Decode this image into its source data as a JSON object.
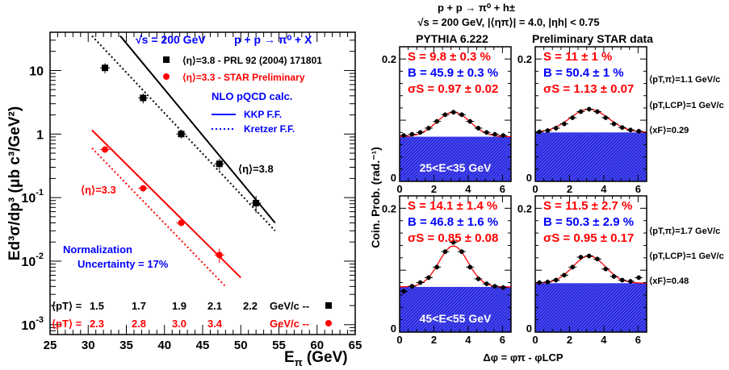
{
  "chart_data": [
    {
      "type": "scatter",
      "title": "",
      "xlabel": "E",
      "xlabel_sub": "π",
      "xlabel_unit": "(GeV)",
      "ylabel": "Ed³σ/dp³ (μb c³/GeV²)",
      "xlim": [
        25,
        65
      ],
      "ylim": [
        0.0007,
        40
      ],
      "yscale": "log",
      "x_ticks": [
        25,
        30,
        35,
        40,
        45,
        50,
        55,
        60,
        65
      ],
      "y_tick_labels": [
        {
          "base": "10",
          "exp": "",
          "y": 10
        },
        {
          "base": "1",
          "exp": "",
          "y": 1
        },
        {
          "base": "10",
          "exp": "-1",
          "y": 0.1
        },
        {
          "base": "10",
          "exp": "-2",
          "y": 0.01
        },
        {
          "base": "10",
          "exp": "-3",
          "y": 0.001
        }
      ],
      "annotations": {
        "sqrt_s": "√s = 200 GeV",
        "process": "p + p → π⁰ + X",
        "legend_black": "⟨η⟩=3.8 - PRL 92 (2004) 171801",
        "legend_red": "⟨η⟩=3.3 - STAR Preliminary",
        "nlo": "NLO pQCD calc.",
        "kkp": "KKP F.F.",
        "kretzer": "Kretzer F.F.",
        "eta38": "⟨η⟩=3.8",
        "eta33": "⟨η⟩=3.3",
        "norm1": "Normalization",
        "norm2": "Uncertainty = 17%"
      },
      "pt_rows": [
        {
          "label": "⟨pT⟩ =",
          "values": [
            "1.5",
            "1.7",
            "1.9",
            "2.1",
            "2.2"
          ],
          "unit": "GeV/c  --",
          "color": "#000000"
        },
        {
          "label": "⟨pT⟩ =",
          "values": [
            "2.3",
            "2.8",
            "3.0",
            "3.4"
          ],
          "unit": "GeV/c  --",
          "color": "#ff0000"
        }
      ],
      "series": [
        {
          "name": "⟨η⟩=3.8 - PRL 92 (2004) 171801",
          "color": "#000000",
          "marker": "square",
          "x": [
            32.2,
            37.2,
            42.2,
            47.2,
            52.0
          ],
          "y": [
            11,
            3.7,
            1.0,
            0.34,
            0.082
          ],
          "yerr_rel": [
            0.18,
            0.18,
            0.15,
            0.2,
            0.3
          ]
        },
        {
          "name": "⟨η⟩=3.3 - STAR Preliminary",
          "color": "#ff0000",
          "marker": "circle",
          "x": [
            32.2,
            37.2,
            42.2,
            47.2
          ],
          "y": [
            0.57,
            0.14,
            0.04,
            0.0125
          ],
          "yerr_rel": [
            0.08,
            0.08,
            0.1,
            0.25
          ]
        }
      ],
      "curves": [
        {
          "name": "KKP F.F.",
          "color": "#000000",
          "style": "solid",
          "x": [
            34.2,
            54.5
          ],
          "y": [
            35,
            0.04
          ]
        },
        {
          "name": "Kretzer F.F.",
          "color": "#000000",
          "style": "dotted",
          "x": [
            30.5,
            54.5
          ],
          "y": [
            35,
            0.03
          ]
        },
        {
          "name": "",
          "color": "#ff0000",
          "style": "solid",
          "x": [
            30.5,
            50.0
          ],
          "y": [
            1.15,
            0.0055
          ]
        },
        {
          "name": "",
          "color": "#ff0000",
          "style": "dotted",
          "x": [
            30.5,
            48.0
          ],
          "y": [
            0.6,
            0.004
          ]
        }
      ]
    },
    {
      "type": "scatter",
      "title_line1": "p + p → π⁰ + h±",
      "title_line2": "√s = 200 GeV, |⟨ηπ⟩| = 4.0, |ηh| < 0.75",
      "col_titles": [
        "PYTHIA 6.222",
        "Preliminary STAR data"
      ],
      "ylabel": "Coin. Prob. (rad.⁻¹)",
      "xlabel": "Δφ = φπ - φLCP",
      "xlim": [
        0,
        6.5
      ],
      "ylim": [
        0,
        0.22
      ],
      "x_ticks": [
        0,
        2,
        4,
        6
      ],
      "y_ticks": [
        0,
        0.2
      ],
      "y_tick_labels": [
        "0",
        "0.2"
      ],
      "side_labels": {
        "top": [
          "⟨pT,π⟩=1.1 GeV/c",
          "⟨pT,LCP⟩=1 GeV/c",
          "⟨xF⟩=0.29"
        ],
        "bottom": [
          "⟨pT,π⟩=1.7 GeV/c",
          "⟨pT,LCP⟩=1 GeV/c",
          "⟨xF⟩=0.48"
        ]
      },
      "panels": [
        {
          "S": "S = 9.8 ± 0.3 %",
          "B": "B = 45.9 ± 0.3 %",
          "sigma": "σS = 0.97 ± 0.02",
          "energy": "25<E<35 GeV",
          "baseline": 0.073,
          "amp": 0.04,
          "width": 0.97,
          "points": [
            0.075,
            0.077,
            0.08,
            0.087,
            0.098,
            0.109,
            0.113,
            0.109,
            0.098,
            0.087,
            0.08,
            0.077,
            0.075
          ]
        },
        {
          "S": "S = 11 ± 1 %",
          "B": "B = 50.4 ± 1 %",
          "sigma": "σS = 1.13 ± 0.07",
          "energy": "",
          "baseline": 0.08,
          "amp": 0.038,
          "width": 1.13,
          "points": [
            0.081,
            0.083,
            0.087,
            0.094,
            0.104,
            0.114,
            0.118,
            0.114,
            0.104,
            0.094,
            0.088,
            0.084,
            0.082
          ]
        },
        {
          "S": "S = 14.1 ± 1.4 %",
          "B": "B = 46.8 ± 1.6 %",
          "sigma": "σS = 0.85 ± 0.08",
          "energy": "45<E<55 GeV",
          "baseline": 0.073,
          "amp": 0.066,
          "width": 0.85,
          "points": [
            0.066,
            0.074,
            0.08,
            0.088,
            0.105,
            0.13,
            0.145,
            0.13,
            0.105,
            0.086,
            0.078,
            0.074,
            0.072
          ]
        },
        {
          "S": "S = 11.5 ± 2.7 %",
          "B": "B = 50.3 ± 2.9 %",
          "sigma": "σS = 0.95 ± 0.17",
          "energy": "",
          "baseline": 0.079,
          "amp": 0.044,
          "width": 0.95,
          "points": [
            0.08,
            0.081,
            0.084,
            0.092,
            0.105,
            0.121,
            0.123,
            0.118,
            0.102,
            0.09,
            0.084,
            0.082,
            0.088
          ]
        }
      ]
    }
  ]
}
